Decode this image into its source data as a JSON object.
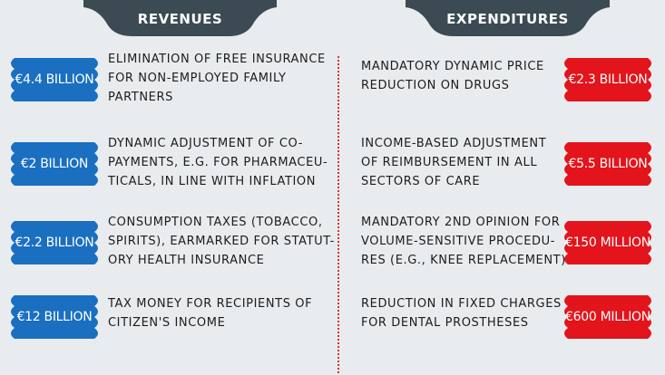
{
  "revenues": {
    "title": "REVENUES",
    "items": [
      {
        "amount": "€4.4 BILLION",
        "lines": [
          "ELIMINATION OF FREE INSURANCE",
          "FOR NON-EMPLOYED FAMILY",
          "PARTNERS"
        ]
      },
      {
        "amount": "€2 BILLION",
        "lines": [
          "DYNAMIC ADJUSTMENT OF CO-",
          "PAYMENTS, E.G. FOR PHARMACEU-",
          "TICALS, IN LINE WITH INFLATION"
        ]
      },
      {
        "amount": "€2.2 BILLION",
        "lines": [
          "CONSUMPTION TAXES (TOBACCO,",
          "SPIRITS), EARMARKED FOR STATUT-",
          "ORY HEALTH INSURANCE"
        ]
      },
      {
        "amount": "€12 BILLION",
        "lines": [
          "TAX MONEY FOR RECIPIENTS OF",
          "CITIZEN'S INCOME"
        ]
      }
    ]
  },
  "expenditures": {
    "title": "EXPENDITURES",
    "items": [
      {
        "amount": "€2.3 BILLION",
        "lines": [
          "MANDATORY DYNAMIC PRICE",
          "REDUCTION ON DRUGS"
        ]
      },
      {
        "amount": "€5.5 BILLION",
        "lines": [
          "INCOME-BASED ADJUSTMENT",
          "OF REIMBURSEMENT IN ALL",
          "SECTORS OF CARE"
        ]
      },
      {
        "amount": "€150 MILLION",
        "lines": [
          "MANDATORY 2ND OPINION FOR",
          "VOLUME-SENSITIVE PROCEDU-",
          "RES (E.G., KNEE REPLACEMENT)"
        ]
      },
      {
        "amount": "€600 MILLION",
        "lines": [
          "REDUCTION IN FIXED CHARGES",
          "FOR DENTAL PROSTHESES"
        ]
      }
    ]
  }
}
